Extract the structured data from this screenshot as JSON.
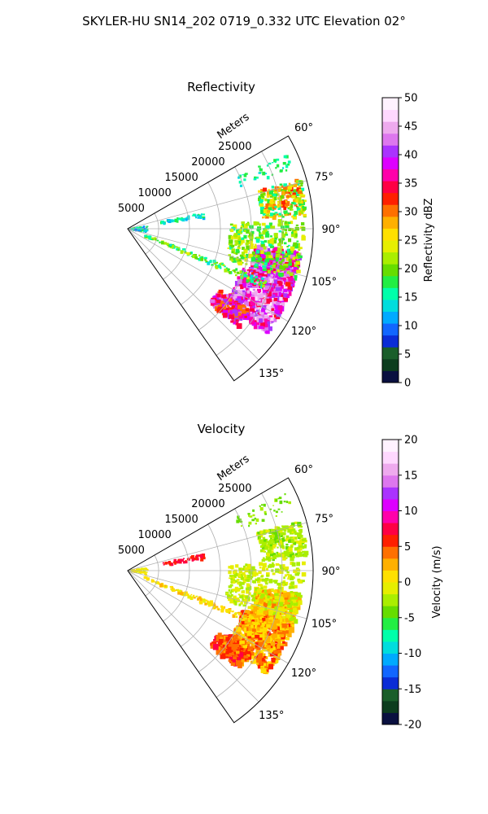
{
  "figure": {
    "title": "SKYLER-HU  SN14_202  0719_0.332 UTC Elevation 02°"
  },
  "chart_data": [
    {
      "type": "heatmap",
      "title": "Reflectivity",
      "range_label": "Meters",
      "range_ticks": [
        5000,
        10000,
        15000,
        20000,
        25000
      ],
      "range_max": 30000,
      "azimuth_range_deg": [
        60,
        145
      ],
      "azimuth_ticks": [
        "60°",
        "75°",
        "90°",
        "105°",
        "120°",
        "135°"
      ],
      "grid": true,
      "colorbar": {
        "label": "Reflectivity dBZ",
        "range": [
          0,
          50
        ],
        "ticks": [
          "0",
          "5",
          "10",
          "15",
          "20",
          "25",
          "30",
          "35",
          "40",
          "45",
          "50"
        ],
        "colors": [
          "#0a1040",
          "#0d3d1e",
          "#1a5e2a",
          "#0a2cd6",
          "#1166ff",
          "#00aaff",
          "#00dddd",
          "#00ffaa",
          "#22ee44",
          "#66dd00",
          "#aaee00",
          "#e6ee00",
          "#ffe000",
          "#ffb000",
          "#ff7000",
          "#ff2000",
          "#ff0044",
          "#ff00aa",
          "#dd00ff",
          "#aa33ff",
          "#dd77ee",
          "#eeaaee",
          "#ffd8ff",
          "#fff2ff"
        ]
      }
    },
    {
      "type": "heatmap",
      "title": "Velocity",
      "range_label": "Meters",
      "range_ticks": [
        5000,
        10000,
        15000,
        20000,
        25000
      ],
      "range_max": 30000,
      "azimuth_range_deg": [
        60,
        145
      ],
      "azimuth_ticks": [
        "60°",
        "75°",
        "90°",
        "105°",
        "120°",
        "135°"
      ],
      "grid": true,
      "colorbar": {
        "label": "Velocity (m/s)",
        "range": [
          -20,
          20
        ],
        "ticks": [
          "-20",
          "-15",
          "-10",
          "-5",
          "0",
          "5",
          "10",
          "15",
          "20"
        ],
        "colors": [
          "#0a1040",
          "#0d3d1e",
          "#1a5e2a",
          "#0a2cd6",
          "#1166ff",
          "#00aaff",
          "#00dddd",
          "#00ffaa",
          "#22ee44",
          "#66dd00",
          "#aaee00",
          "#e6ee00",
          "#ffe000",
          "#ffb000",
          "#ff7000",
          "#ff2000",
          "#ff0044",
          "#ff00aa",
          "#dd00ff",
          "#aa33ff",
          "#dd77ee",
          "#eeaaee",
          "#ffd8ff",
          "#fff2ff"
        ]
      }
    }
  ]
}
